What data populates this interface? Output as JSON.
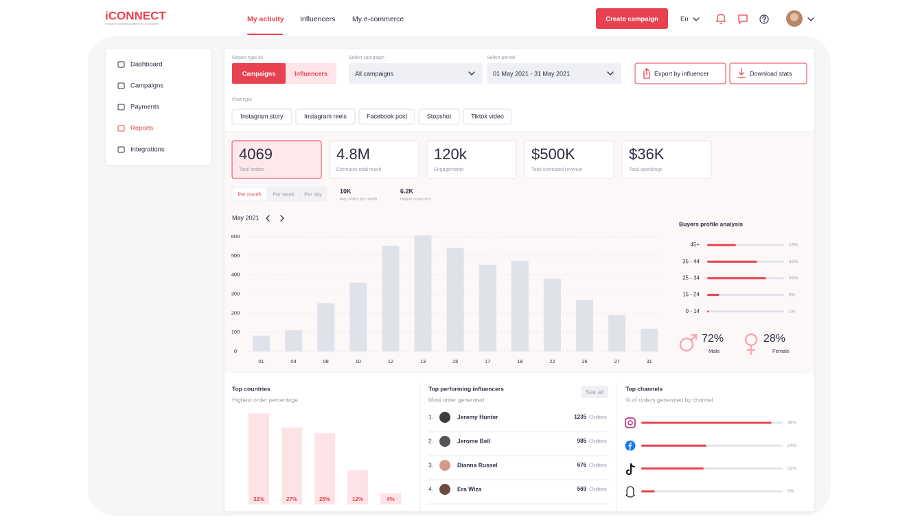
{
  "header": {
    "logo": "iCONNECT",
    "logo_tagline": "Empower marketing platform by Ecobuysels",
    "nav": [
      "My activity",
      "Influencers",
      "My e-commerce"
    ],
    "create_button": "Create campaign",
    "language": "En"
  },
  "sidebar": [
    "Dashboard",
    "Campaigns",
    "Payments",
    "Reports",
    "Integrations"
  ],
  "filters": {
    "report_type_label": "Report type by",
    "report_types": [
      "Campaigns",
      "Influencers"
    ],
    "campaign_label": "Select campaign",
    "campaign": "All campaigns",
    "period_label": "Select period",
    "period": "01 May 2021 - 31 May 2021",
    "export_button": "Export by influencer",
    "download_button": "Download stats",
    "post_type_label": "Post type",
    "post_types": [
      "Instagram story",
      "Instagram reels",
      "Facebook post",
      "Stopshot",
      "Tiktok video"
    ]
  },
  "kpis": [
    {
      "value": "4069",
      "label": "Total orders"
    },
    {
      "value": "4.8M",
      "label": "Estimates total reach"
    },
    {
      "value": "120k",
      "label": "Engagements"
    },
    {
      "value": "$500K",
      "label": "Total estimated revenue"
    },
    {
      "value": "$36K",
      "label": "Total spendings"
    }
  ],
  "period_tabs": [
    "Per month",
    "Per week",
    "Per day"
  ],
  "stats": [
    {
      "value": "10K",
      "label": "Avg. orders per month"
    },
    {
      "value": "6.2K",
      "label": "Unique customers"
    }
  ],
  "orders_chart": {
    "type": "bar",
    "month": "May 2021",
    "categories": [
      "01",
      "04",
      "08",
      "10",
      "12",
      "13",
      "15",
      "17",
      "18",
      "22",
      "26",
      "27",
      "31"
    ],
    "values": [
      83,
      111,
      252,
      360,
      553,
      607,
      543,
      453,
      474,
      381,
      270,
      190,
      119
    ],
    "ylim": [
      0,
      600
    ],
    "yticks": [
      0,
      100,
      200,
      300,
      400,
      500,
      600
    ],
    "grid": true,
    "color": "#dfe2ea"
  },
  "buyers_profile": {
    "title": "Buyers profile analysis",
    "categories": [
      "45+",
      "35 - 44",
      "25 - 34",
      "15 - 24",
      "0 - 14"
    ],
    "values": [
      19,
      33,
      39,
      8,
      1
    ],
    "value_labels": [
      "19%",
      "33%",
      "39%",
      "8%",
      "1%"
    ],
    "gender": [
      {
        "share": "72%",
        "name": "Male"
      },
      {
        "share": "28%",
        "name": "Female"
      }
    ]
  },
  "top_countries": {
    "title": "Top countries",
    "subtitle": "Highest order percentage",
    "values": [
      32,
      27,
      25,
      12,
      4
    ],
    "value_labels": [
      "32%",
      "27%",
      "25%",
      "12%",
      "4%"
    ]
  },
  "top_influencers": {
    "title": "Top performing influencers",
    "subtitle": "Most order generated",
    "see_all": "See all",
    "rows": [
      {
        "rank": "1.",
        "name": "Jeremy Hunter",
        "orders": "1235",
        "unit": "Orders"
      },
      {
        "rank": "2.",
        "name": "Jerome Bell",
        "orders": "985",
        "unit": "Orders"
      },
      {
        "rank": "3.",
        "name": "Dianna Russel",
        "orders": "676",
        "unit": "Orders"
      },
      {
        "rank": "4.",
        "name": "Era Wiza",
        "orders": "569",
        "unit": "Orders"
      }
    ]
  },
  "top_channels": {
    "title": "Top channels",
    "subtitle": "% of orders generated by channel",
    "values": [
      48,
      24,
      23,
      5
    ],
    "value_labels": [
      "48%",
      "24%",
      "23%",
      "5%"
    ]
  }
}
